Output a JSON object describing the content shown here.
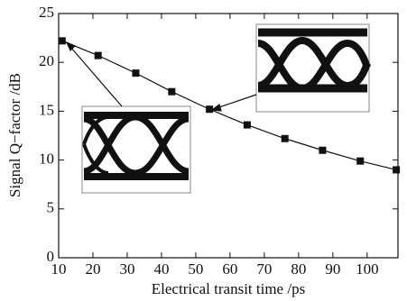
{
  "chart_data": {
    "type": "line",
    "x_label": "Electrical transit time /ps",
    "y_label": "Signal Q−factor /dB",
    "x": [
      11,
      21.5,
      32.5,
      43,
      54,
      65,
      76,
      87,
      98,
      108.5
    ],
    "series": [
      {
        "color": "#111111",
        "values": [
          22.2,
          20.7,
          18.9,
          17.0,
          15.2,
          13.6,
          12.2,
          11.0,
          9.9,
          9.0
        ]
      }
    ],
    "xlim": [
      10,
      109
    ],
    "xticks": [
      10,
      20,
      30,
      40,
      50,
      60,
      70,
      80,
      90,
      100
    ],
    "ylim": [
      0,
      25
    ],
    "yticks": [
      0,
      5,
      10,
      15,
      20,
      25
    ]
  }
}
